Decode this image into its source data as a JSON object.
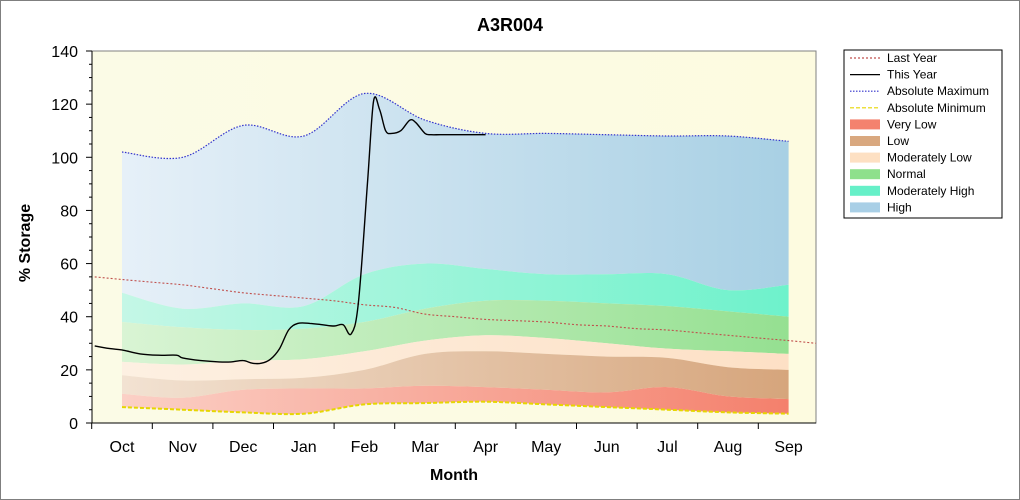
{
  "chart_data": {
    "type": "area",
    "title": "A3R004",
    "xlabel": "Month",
    "ylabel": "% Storage",
    "ylim": [
      0,
      140
    ],
    "yticks": [
      0,
      20,
      40,
      60,
      80,
      100,
      120,
      140
    ],
    "categories": [
      "Oct",
      "Nov",
      "Dec",
      "Jan",
      "Feb",
      "Mar",
      "Apr",
      "May",
      "Jun",
      "Jul",
      "Aug",
      "Sep"
    ],
    "legend_position": "right",
    "grid": false,
    "band_x": [
      0,
      1,
      2,
      3,
      4,
      5,
      6,
      7,
      8,
      9,
      10,
      11
    ],
    "bands": {
      "absolute_minimum": [
        6,
        5,
        4,
        3.5,
        7,
        7.5,
        8,
        7,
        6,
        5,
        4,
        3.5
      ],
      "very_low": [
        11,
        9.5,
        12.5,
        13,
        13,
        14,
        13.5,
        12.5,
        11.5,
        13.5,
        10,
        9
      ],
      "low": [
        18,
        16,
        16.5,
        17,
        20,
        26,
        27,
        26,
        25,
        24.5,
        21,
        20
      ],
      "moderately_low": [
        23,
        22,
        23.5,
        24,
        27,
        31,
        33,
        32,
        30,
        28,
        27,
        26
      ],
      "normal": [
        38,
        36,
        35,
        35.5,
        38,
        43,
        46,
        46,
        45,
        44,
        42,
        40
      ],
      "moderately_high": [
        49,
        43,
        45,
        44,
        56,
        60,
        58,
        56,
        56,
        56,
        50,
        52
      ],
      "absolute_maximum": [
        102,
        100,
        112,
        108,
        124,
        114,
        109,
        109,
        108.5,
        108,
        108,
        106
      ]
    },
    "series": [
      {
        "name": "Last Year",
        "color": "#c0504d",
        "style": "dotted",
        "x": [
          -0.45,
          0,
          0.5,
          1,
          1.5,
          2,
          2.5,
          3,
          3.5,
          4,
          4.5,
          5,
          5.5,
          6,
          6.5,
          7,
          7.5,
          8,
          8.5,
          9,
          9.5,
          10,
          10.5,
          11,
          11.45
        ],
        "y": [
          55,
          54,
          53,
          52,
          50.5,
          49,
          48,
          47,
          46,
          44.5,
          43.5,
          41,
          40,
          39,
          38.5,
          38,
          37,
          36.5,
          35.5,
          35,
          34,
          33,
          32,
          31,
          30
        ]
      },
      {
        "name": "This Year",
        "color": "#000000",
        "style": "solid",
        "x": [
          -0.45,
          -0.2,
          0,
          0.3,
          0.6,
          0.9,
          1,
          1.3,
          1.6,
          1.8,
          2,
          2.15,
          2.3,
          2.45,
          2.6,
          2.75,
          2.9,
          3.1,
          3.3,
          3.5,
          3.65,
          3.78,
          3.9,
          4.05,
          4.15,
          4.25,
          4.35,
          4.45,
          4.6,
          4.75,
          4.85,
          5,
          5.1,
          5.25,
          5.5,
          5.75,
          6
        ],
        "y": [
          29,
          28,
          27.5,
          26,
          25.5,
          25.5,
          24.5,
          23.5,
          23,
          23,
          23.5,
          22.5,
          22.5,
          24,
          28,
          35,
          37.5,
          37.5,
          37,
          36.5,
          37,
          33.5,
          45,
          90,
          121,
          118,
          110,
          109,
          110,
          114,
          113,
          109,
          108.5,
          108.5,
          108.5,
          108.5,
          108.5
        ]
      },
      {
        "name": "Absolute Maximum",
        "color": "#3333cc",
        "style": "dotted"
      },
      {
        "name": "Absolute Minimum",
        "color": "#e6d600",
        "style": "dashed"
      }
    ],
    "legend": [
      {
        "name": "Last Year",
        "kind": "line",
        "color": "#c0504d",
        "dash": "2,2"
      },
      {
        "name": "This Year",
        "kind": "line",
        "color": "#000000",
        "dash": ""
      },
      {
        "name": "Absolute Maximum",
        "kind": "line",
        "color": "#3333cc",
        "dash": "1.5,1.5"
      },
      {
        "name": "Absolute Minimum",
        "kind": "line",
        "color": "#e6d600",
        "dash": "4,2"
      },
      {
        "name": "Very Low",
        "kind": "fill",
        "color": "#f4826e"
      },
      {
        "name": "Low",
        "kind": "fill",
        "color": "#d9a87f"
      },
      {
        "name": "Moderately Low",
        "kind": "fill",
        "color": "#fde0c3"
      },
      {
        "name": "Normal",
        "kind": "fill",
        "color": "#8ee08c"
      },
      {
        "name": "Moderately High",
        "kind": "fill",
        "color": "#66f0c8"
      },
      {
        "name": "High",
        "kind": "fill",
        "color": "#a9cfe6"
      }
    ]
  }
}
